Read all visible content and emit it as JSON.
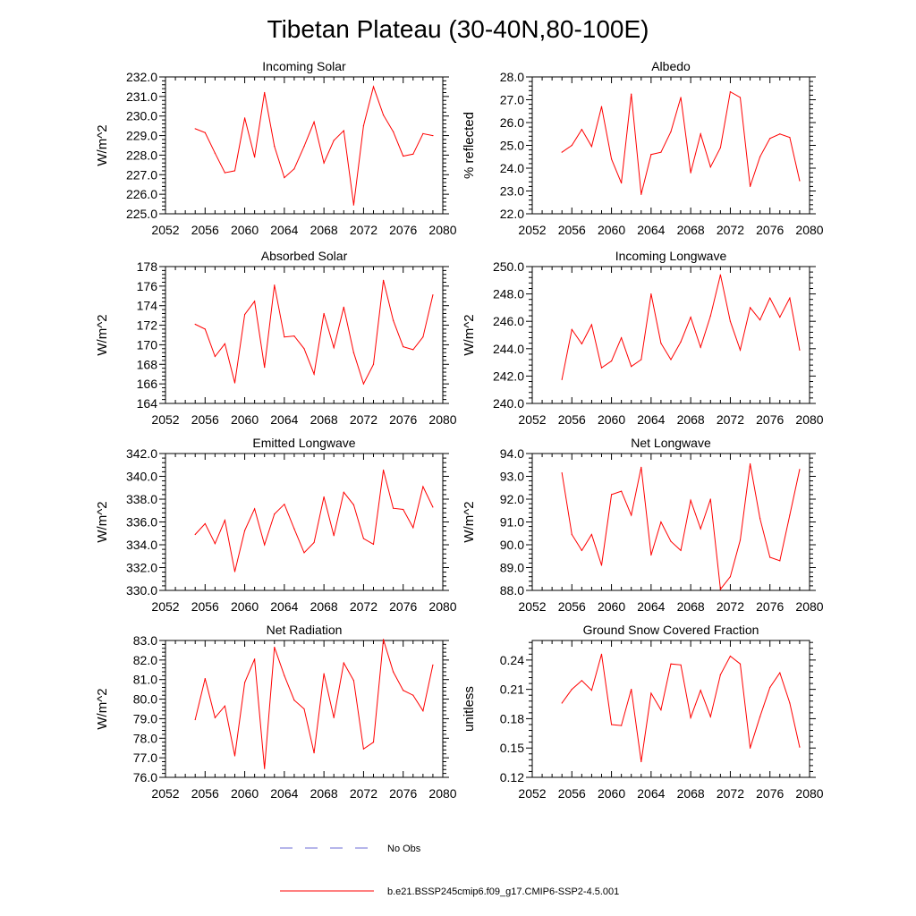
{
  "figure": {
    "title": "Tibetan Plateau (30-40N,80-100E)",
    "legend": [
      {
        "label": "No Obs",
        "color": "#6b6bd6",
        "style": "dashed"
      },
      {
        "label": "b.e21.BSSP245cmip6.f09_g17.CMIP6-SSP2-4.5.001",
        "color": "#ff0000",
        "style": "solid"
      }
    ]
  },
  "chart_data": [
    {
      "type": "line",
      "title": "Incoming Solar",
      "ylabel": "W/m^2",
      "xlim": [
        2052,
        2080
      ],
      "ylim": [
        225.0,
        232.0
      ],
      "x_ticks": [
        2052,
        2056,
        2060,
        2064,
        2068,
        2072,
        2076,
        2080
      ],
      "y_ticks": [
        "225.0",
        "226.0",
        "227.0",
        "228.0",
        "229.0",
        "230.0",
        "231.0",
        "232.0"
      ],
      "x": [
        2055,
        2056,
        2057,
        2058,
        2059,
        2060,
        2061,
        2062,
        2063,
        2064,
        2065,
        2066,
        2067,
        2068,
        2069,
        2070,
        2071,
        2072,
        2073,
        2074,
        2075,
        2076,
        2077,
        2078,
        2079
      ],
      "series": [
        {
          "color": "#ff0000",
          "values": [
            229.35,
            229.15,
            228.1,
            227.1,
            227.2,
            229.9,
            227.9,
            231.2,
            228.45,
            226.85,
            227.3,
            228.45,
            229.7,
            227.6,
            228.75,
            229.25,
            225.45,
            229.5,
            231.5,
            230.05,
            229.2,
            227.95,
            228.05,
            229.1,
            229.0
          ]
        }
      ]
    },
    {
      "type": "line",
      "title": "Albedo",
      "ylabel": "% reflected",
      "xlim": [
        2052,
        2080
      ],
      "ylim": [
        22.0,
        28.0
      ],
      "x_ticks": [
        2052,
        2056,
        2060,
        2064,
        2068,
        2072,
        2076,
        2080
      ],
      "y_ticks": [
        "22.0",
        "23.0",
        "24.0",
        "25.0",
        "26.0",
        "27.0",
        "28.0"
      ],
      "x": [
        2055,
        2056,
        2057,
        2058,
        2059,
        2060,
        2061,
        2062,
        2063,
        2064,
        2065,
        2066,
        2067,
        2068,
        2069,
        2070,
        2071,
        2072,
        2073,
        2074,
        2075,
        2076,
        2077,
        2078,
        2079
      ],
      "series": [
        {
          "color": "#ff0000",
          "values": [
            24.7,
            25.0,
            25.7,
            24.95,
            26.7,
            24.4,
            23.35,
            27.25,
            22.85,
            24.6,
            24.7,
            25.6,
            27.1,
            23.8,
            25.5,
            24.05,
            24.9,
            27.35,
            27.1,
            23.2,
            24.5,
            25.3,
            25.5,
            25.35,
            23.45
          ]
        }
      ]
    },
    {
      "type": "line",
      "title": "Absorbed Solar",
      "ylabel": "W/m^2",
      "xlim": [
        2052,
        2080
      ],
      "ylim": [
        164,
        178
      ],
      "x_ticks": [
        2052,
        2056,
        2060,
        2064,
        2068,
        2072,
        2076,
        2080
      ],
      "y_ticks": [
        "164",
        "166",
        "168",
        "170",
        "172",
        "174",
        "176",
        "178"
      ],
      "x": [
        2055,
        2056,
        2057,
        2058,
        2059,
        2060,
        2061,
        2062,
        2063,
        2064,
        2065,
        2066,
        2067,
        2068,
        2069,
        2070,
        2071,
        2072,
        2073,
        2074,
        2075,
        2076,
        2077,
        2078,
        2079
      ],
      "series": [
        {
          "color": "#ff0000",
          "values": [
            172.1,
            171.6,
            168.8,
            170.1,
            166.1,
            173.1,
            174.45,
            167.7,
            176.1,
            170.8,
            170.9,
            169.6,
            167.0,
            173.2,
            169.7,
            173.85,
            169.2,
            166.0,
            168.0,
            176.6,
            172.5,
            169.8,
            169.5,
            170.8,
            175.1
          ]
        }
      ]
    },
    {
      "type": "line",
      "title": "Incoming Longwave",
      "ylabel": "W/m^2",
      "xlim": [
        2052,
        2080
      ],
      "ylim": [
        240.0,
        250.0
      ],
      "x_ticks": [
        2052,
        2056,
        2060,
        2064,
        2068,
        2072,
        2076,
        2080
      ],
      "y_ticks": [
        "240.0",
        "242.0",
        "244.0",
        "246.0",
        "248.0",
        "250.0"
      ],
      "x": [
        2055,
        2056,
        2057,
        2058,
        2059,
        2060,
        2061,
        2062,
        2063,
        2064,
        2065,
        2066,
        2067,
        2068,
        2069,
        2070,
        2071,
        2072,
        2073,
        2074,
        2075,
        2076,
        2077,
        2078,
        2079
      ],
      "series": [
        {
          "color": "#ff0000",
          "values": [
            241.75,
            245.4,
            244.35,
            245.75,
            242.6,
            243.1,
            244.8,
            242.7,
            243.2,
            248.0,
            244.4,
            243.2,
            244.5,
            246.3,
            244.1,
            246.4,
            249.4,
            246.0,
            243.9,
            247.0,
            246.1,
            247.7,
            246.3,
            247.7,
            243.9
          ]
        }
      ]
    },
    {
      "type": "line",
      "title": "Emitted Longwave",
      "ylabel": "W/m^2",
      "xlim": [
        2052,
        2080
      ],
      "ylim": [
        330.0,
        342.0
      ],
      "x_ticks": [
        2052,
        2056,
        2060,
        2064,
        2068,
        2072,
        2076,
        2080
      ],
      "y_ticks": [
        "330.0",
        "332.0",
        "334.0",
        "336.0",
        "338.0",
        "340.0",
        "342.0"
      ],
      "x": [
        2055,
        2056,
        2057,
        2058,
        2059,
        2060,
        2061,
        2062,
        2063,
        2064,
        2065,
        2066,
        2067,
        2068,
        2069,
        2070,
        2071,
        2072,
        2073,
        2074,
        2075,
        2076,
        2077,
        2078,
        2079
      ],
      "series": [
        {
          "color": "#ff0000",
          "values": [
            334.9,
            335.85,
            334.1,
            336.15,
            331.65,
            335.25,
            337.15,
            334.0,
            336.7,
            337.55,
            335.4,
            333.3,
            334.2,
            338.2,
            334.8,
            338.6,
            337.5,
            334.55,
            334.05,
            340.55,
            337.2,
            337.1,
            335.5,
            339.1,
            337.3
          ]
        }
      ]
    },
    {
      "type": "line",
      "title": "Net Longwave",
      "ylabel": "W/m^2",
      "xlim": [
        2052,
        2080
      ],
      "ylim": [
        88.0,
        94.0
      ],
      "x_ticks": [
        2052,
        2056,
        2060,
        2064,
        2068,
        2072,
        2076,
        2080
      ],
      "y_ticks": [
        "88.0",
        "89.0",
        "90.0",
        "91.0",
        "92.0",
        "93.0",
        "94.0"
      ],
      "x": [
        2055,
        2056,
        2057,
        2058,
        2059,
        2060,
        2061,
        2062,
        2063,
        2064,
        2065,
        2066,
        2067,
        2068,
        2069,
        2070,
        2071,
        2072,
        2073,
        2074,
        2075,
        2076,
        2077,
        2078,
        2079
      ],
      "series": [
        {
          "color": "#ff0000",
          "values": [
            93.15,
            90.45,
            89.75,
            90.45,
            89.1,
            92.2,
            92.35,
            91.3,
            93.4,
            89.55,
            91.0,
            90.15,
            89.75,
            91.95,
            90.7,
            92.0,
            88.05,
            88.6,
            90.2,
            93.55,
            91.15,
            89.45,
            89.3,
            91.3,
            93.3
          ]
        }
      ]
    },
    {
      "type": "line",
      "title": "Net Radiation",
      "ylabel": "W/m^2",
      "xlim": [
        2052,
        2080
      ],
      "ylim": [
        76.0,
        83.0
      ],
      "x_ticks": [
        2052,
        2056,
        2060,
        2064,
        2068,
        2072,
        2076,
        2080
      ],
      "y_ticks": [
        "76.0",
        "77.0",
        "78.0",
        "79.0",
        "80.0",
        "81.0",
        "82.0",
        "83.0"
      ],
      "x": [
        2055,
        2056,
        2057,
        2058,
        2059,
        2060,
        2061,
        2062,
        2063,
        2064,
        2065,
        2066,
        2067,
        2068,
        2069,
        2070,
        2071,
        2072,
        2073,
        2074,
        2075,
        2076,
        2077,
        2078,
        2079
      ],
      "series": [
        {
          "color": "#ff0000",
          "values": [
            78.95,
            81.05,
            79.05,
            79.65,
            77.1,
            80.85,
            82.05,
            76.45,
            82.65,
            81.2,
            79.95,
            79.5,
            77.25,
            81.3,
            79.05,
            81.85,
            80.95,
            77.45,
            77.8,
            83.05,
            81.4,
            80.45,
            80.2,
            79.4,
            81.75
          ]
        }
      ]
    },
    {
      "type": "line",
      "title": "Ground Snow Covered Fraction",
      "ylabel": "unitless",
      "xlim": [
        2052,
        2080
      ],
      "ylim": [
        0.12,
        0.26
      ],
      "x_ticks": [
        2052,
        2056,
        2060,
        2064,
        2068,
        2072,
        2076,
        2080
      ],
      "y_ticks": [
        "0.12",
        "0.15",
        "0.18",
        "0.21",
        "0.24"
      ],
      "y_tick_values": [
        0.12,
        0.15,
        0.18,
        0.21,
        0.24
      ],
      "x": [
        2055,
        2056,
        2057,
        2058,
        2059,
        2060,
        2061,
        2062,
        2063,
        2064,
        2065,
        2066,
        2067,
        2068,
        2069,
        2070,
        2071,
        2072,
        2073,
        2074,
        2075,
        2076,
        2077,
        2078,
        2079
      ],
      "series": [
        {
          "color": "#ff0000",
          "values": [
            0.196,
            0.21,
            0.219,
            0.209,
            0.246,
            0.174,
            0.173,
            0.21,
            0.136,
            0.206,
            0.189,
            0.236,
            0.235,
            0.181,
            0.209,
            0.182,
            0.225,
            0.244,
            0.236,
            0.15,
            0.182,
            0.212,
            0.227,
            0.196,
            0.151
          ]
        }
      ]
    }
  ]
}
